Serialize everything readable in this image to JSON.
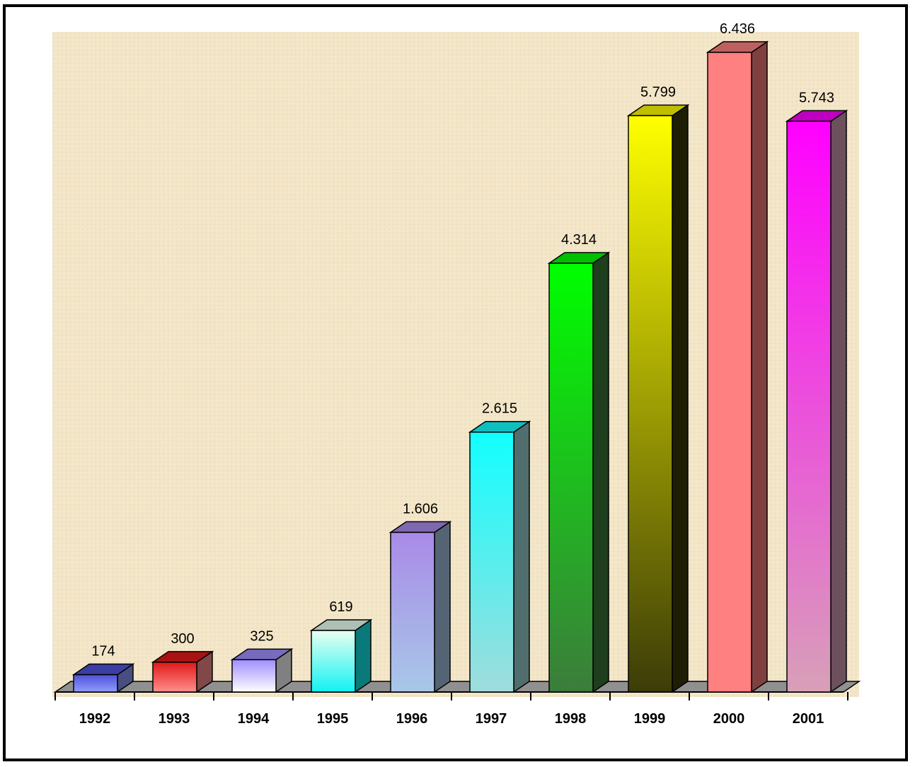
{
  "chart_data": {
    "type": "bar",
    "title": "",
    "xlabel": "",
    "ylabel": "",
    "categories": [
      "1992",
      "1993",
      "1994",
      "1995",
      "1996",
      "1997",
      "1998",
      "1999",
      "2000",
      "2001"
    ],
    "values": [
      174,
      300,
      325,
      619,
      1606,
      2615,
      4314,
      5799,
      6436,
      5743
    ],
    "value_labels": [
      "174",
      "300",
      "325",
      "619",
      "1.606",
      "2.615",
      "4.314",
      "5.799",
      "6.436",
      "5.743"
    ],
    "ylim": [
      0,
      6436
    ],
    "grid": false,
    "legend": "none",
    "three_d": true,
    "bar_colors": [
      {
        "top": "#4f52d8",
        "bottom": "#8f9cff"
      },
      {
        "top": "#e01818",
        "bottom": "#ff8f8f"
      },
      {
        "top": "#9f8fff",
        "bottom": "#ffffff"
      },
      {
        "top": "#e8fff0",
        "bottom": "#12f2f2"
      },
      {
        "top": "#a98ae8",
        "bottom": "#a8c8e8"
      },
      {
        "top": "#12ffff",
        "bottom": "#a0dcdc"
      },
      {
        "top": "#00ff00",
        "bottom": "#3c7c3c"
      },
      {
        "top": "#ffff00",
        "bottom": "#3c3c08"
      },
      {
        "top": "#ff8080",
        "bottom": "#ff8080"
      },
      {
        "top": "#ff00ff",
        "bottom": "#d8a0b8"
      }
    ],
    "plot_background": "#f3e4c4"
  }
}
